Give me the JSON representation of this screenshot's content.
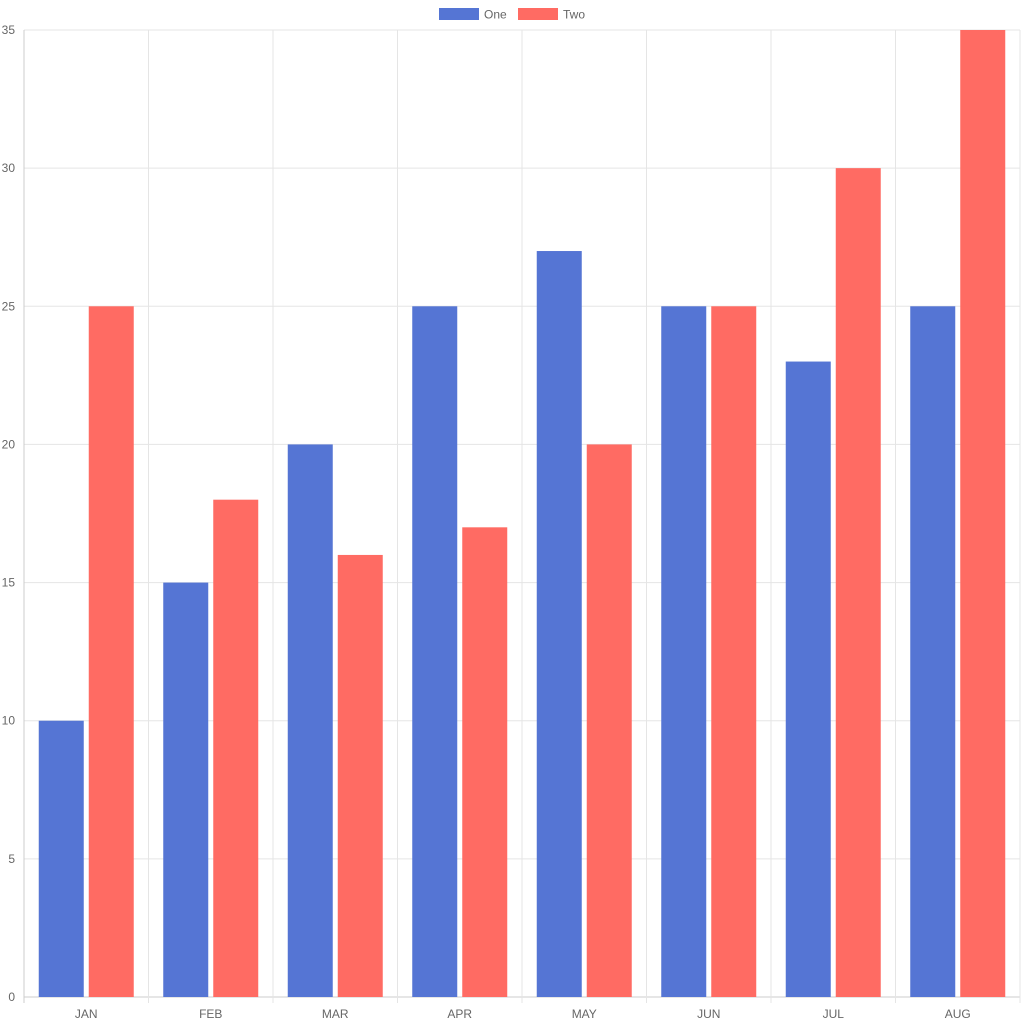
{
  "chart_data": {
    "type": "bar",
    "categories": [
      "JAN",
      "FEB",
      "MAR",
      "APR",
      "MAY",
      "JUN",
      "JUL",
      "AUG"
    ],
    "series": [
      {
        "name": "One",
        "color": "#5575d4",
        "values": [
          10,
          15,
          20,
          25,
          27,
          25,
          23,
          25
        ]
      },
      {
        "name": "Two",
        "color": "#ff6b63",
        "values": [
          25,
          18,
          16,
          17,
          20,
          25,
          30,
          35
        ]
      }
    ],
    "ylim": [
      0,
      35
    ],
    "yticks": [
      0,
      5,
      10,
      15,
      20,
      25,
      30,
      35
    ],
    "grid": true,
    "legend_position": "top-center",
    "colors": {
      "grid": "#e5e5e5",
      "axis": "#cccccc",
      "tick_text": "#666666"
    }
  }
}
